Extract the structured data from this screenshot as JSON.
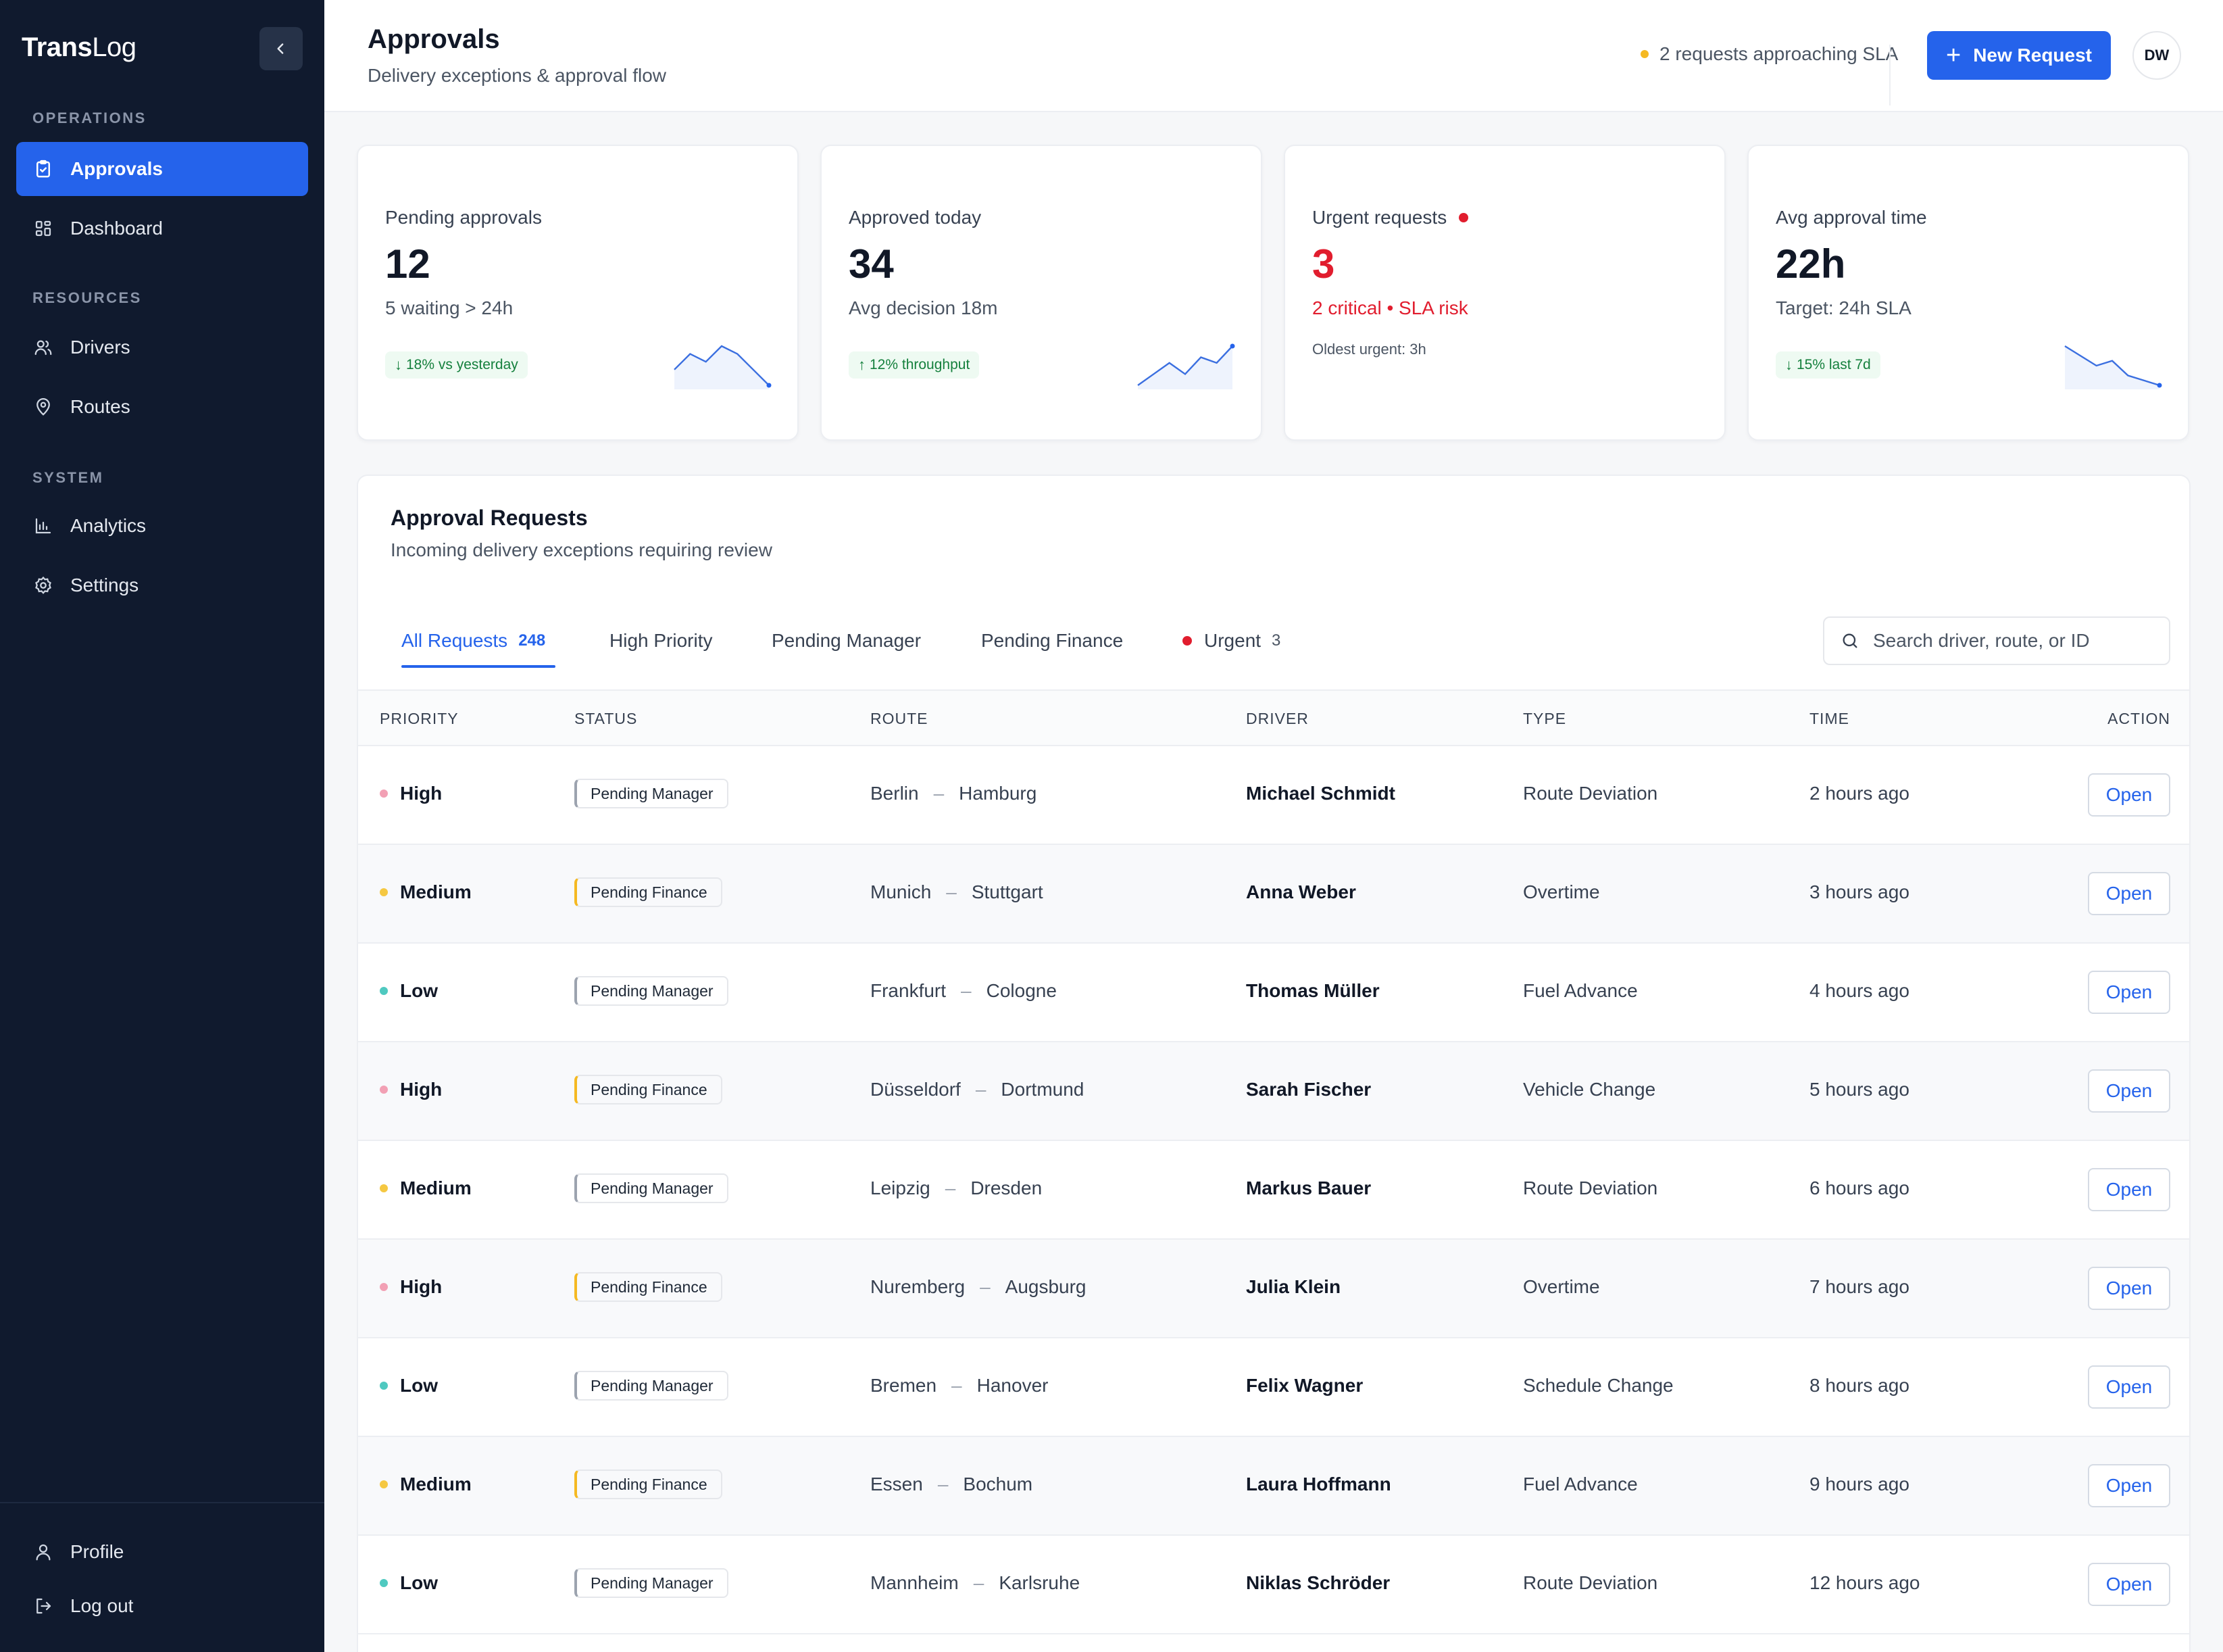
{
  "app": {
    "logo_bold": "Trans",
    "logo_light": "Log"
  },
  "sidebar": {
    "sections": [
      "OPERATIONS",
      "RESOURCES",
      "SYSTEM"
    ],
    "items": [
      {
        "label": "Approvals",
        "icon": "clipboard-check-icon",
        "active": true
      },
      {
        "label": "Dashboard",
        "icon": "grid-icon"
      },
      {
        "label": "Drivers",
        "icon": "users-icon"
      },
      {
        "label": "Routes",
        "icon": "map-pin-icon"
      },
      {
        "label": "Analytics",
        "icon": "bar-chart-icon"
      },
      {
        "label": "Settings",
        "icon": "gear-icon"
      }
    ],
    "bottom": [
      {
        "label": "Profile",
        "icon": "user-icon"
      },
      {
        "label": "Log out",
        "icon": "logout-icon"
      }
    ]
  },
  "header": {
    "title": "Approvals",
    "subtitle": "Delivery exceptions & approval flow",
    "sla_warning": "2 requests approaching SLA",
    "new_request": "New Request",
    "avatar": "DW"
  },
  "kpis": [
    {
      "label": "Pending approvals",
      "value": "12",
      "sub": "5 waiting > 24h",
      "chip": "18% vs yesterday",
      "chip_dir": "down",
      "spark": [
        3,
        5,
        4,
        6,
        5,
        3,
        1
      ]
    },
    {
      "label": "Approved today",
      "value": "34",
      "sub": "Avg decision 18m",
      "chip": "12% throughput",
      "chip_dir": "up",
      "spark": [
        1,
        3,
        5,
        3,
        6,
        5,
        8
      ]
    },
    {
      "label": "Urgent requests",
      "value": "3",
      "sub": "2 critical • SLA risk",
      "note": "Oldest urgent: 3h"
    },
    {
      "label": "Avg approval time",
      "value": "22h",
      "sub": "Target: 24h SLA",
      "chip": "15% last 7d",
      "chip_dir": "down",
      "spark": [
        7,
        6,
        5,
        5.5,
        4,
        3.5,
        3
      ]
    }
  ],
  "panel": {
    "title": "Approval Requests",
    "subtitle": "Incoming delivery exceptions requiring review",
    "tabs": [
      {
        "label": "All Requests",
        "count": "248"
      },
      {
        "label": "High Priority"
      },
      {
        "label": "Pending Manager"
      },
      {
        "label": "Pending Finance"
      },
      {
        "label": "Urgent",
        "count": "3"
      }
    ],
    "search_placeholder": "Search driver, route, or ID",
    "columns": [
      "PRIORITY",
      "STATUS",
      "ROUTE",
      "DRIVER",
      "TYPE",
      "TIME",
      "ACTION"
    ],
    "action_label": "Open",
    "priority_colors": {
      "High": "#f2a0b4",
      "Medium": "#f5c842",
      "Low": "#4fc9c0"
    },
    "rows": [
      {
        "priority": "High",
        "status": "Pending Manager",
        "from": "Berlin",
        "to": "Hamburg",
        "driver": "Michael Schmidt",
        "type": "Route Deviation",
        "time": "2 hours ago"
      },
      {
        "priority": "Medium",
        "status": "Pending Finance",
        "from": "Munich",
        "to": "Stuttgart",
        "driver": "Anna Weber",
        "type": "Overtime",
        "time": "3 hours ago"
      },
      {
        "priority": "Low",
        "status": "Pending Manager",
        "from": "Frankfurt",
        "to": "Cologne",
        "driver": "Thomas Müller",
        "type": "Fuel Advance",
        "time": "4 hours ago"
      },
      {
        "priority": "High",
        "status": "Pending Finance",
        "from": "Düsseldorf",
        "to": "Dortmund",
        "driver": "Sarah Fischer",
        "type": "Vehicle Change",
        "time": "5 hours ago"
      },
      {
        "priority": "Medium",
        "status": "Pending Manager",
        "from": "Leipzig",
        "to": "Dresden",
        "driver": "Markus Bauer",
        "type": "Route Deviation",
        "time": "6 hours ago"
      },
      {
        "priority": "High",
        "status": "Pending Finance",
        "from": "Nuremberg",
        "to": "Augsburg",
        "driver": "Julia Klein",
        "type": "Overtime",
        "time": "7 hours ago"
      },
      {
        "priority": "Low",
        "status": "Pending Manager",
        "from": "Bremen",
        "to": "Hanover",
        "driver": "Felix Wagner",
        "type": "Schedule Change",
        "time": "8 hours ago"
      },
      {
        "priority": "Medium",
        "status": "Pending Finance",
        "from": "Essen",
        "to": "Bochum",
        "driver": "Laura Hoffmann",
        "type": "Fuel Advance",
        "time": "9 hours ago"
      },
      {
        "priority": "Low",
        "status": "Pending Manager",
        "from": "Mannheim",
        "to": "Karlsruhe",
        "driver": "Niklas Schröder",
        "type": "Route Deviation",
        "time": "12 hours ago"
      }
    ]
  }
}
